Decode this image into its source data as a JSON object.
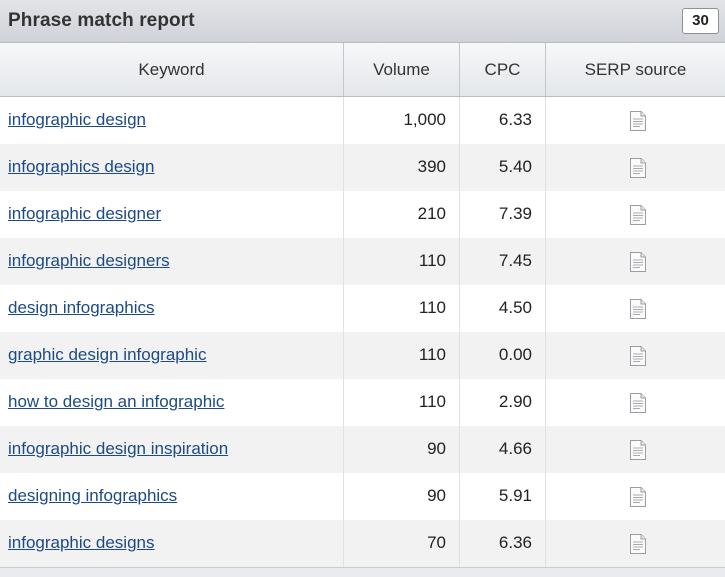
{
  "report": {
    "title": "Phrase match report",
    "count": "30"
  },
  "columns": {
    "keyword": "Keyword",
    "volume": "Volume",
    "cpc": "CPC",
    "serp": "SERP source"
  },
  "rows": [
    {
      "keyword": "infographic design",
      "volume": "1,000",
      "cpc": "6.33",
      "serp_icon": "document-icon"
    },
    {
      "keyword": "infographics design",
      "volume": "390",
      "cpc": "5.40",
      "serp_icon": "document-icon"
    },
    {
      "keyword": "infographic designer",
      "volume": "210",
      "cpc": "7.39",
      "serp_icon": "document-icon"
    },
    {
      "keyword": "infographic designers",
      "volume": "110",
      "cpc": "7.45",
      "serp_icon": "document-icon"
    },
    {
      "keyword": "design infographics",
      "volume": "110",
      "cpc": "4.50",
      "serp_icon": "document-icon"
    },
    {
      "keyword": "graphic design infographic",
      "volume": "110",
      "cpc": "0.00",
      "serp_icon": "document-icon"
    },
    {
      "keyword": "how to design an infographic",
      "volume": "110",
      "cpc": "2.90",
      "serp_icon": "document-icon"
    },
    {
      "keyword": "infographic design inspiration",
      "volume": "90",
      "cpc": "4.66",
      "serp_icon": "document-icon"
    },
    {
      "keyword": "designing infographics",
      "volume": "90",
      "cpc": "5.91",
      "serp_icon": "document-icon"
    },
    {
      "keyword": "infographic designs",
      "volume": "70",
      "cpc": "6.36",
      "serp_icon": "document-icon"
    }
  ],
  "colors": {
    "link": "#1c4a86",
    "alt_row": "#f2f2f2",
    "header_bg": "#e3e6ea"
  }
}
